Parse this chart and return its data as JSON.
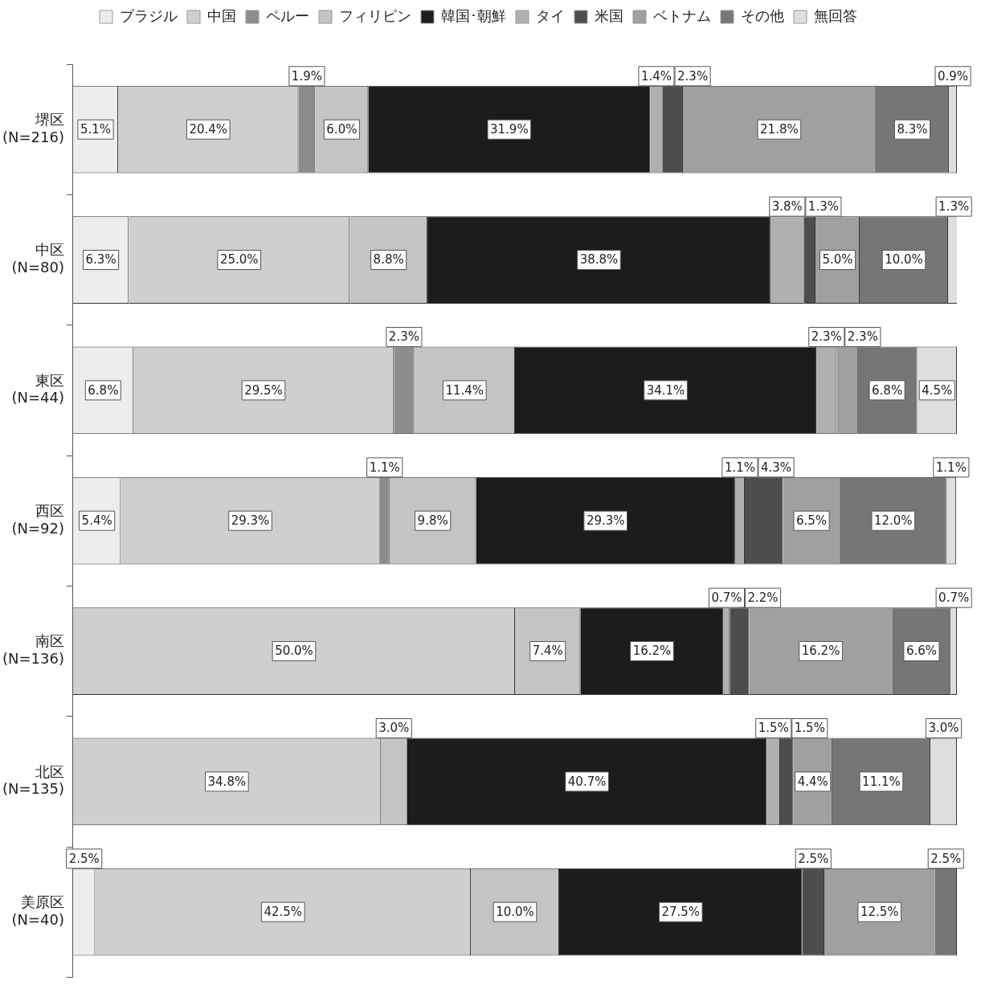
{
  "chart_data": {
    "type": "bar",
    "orientation": "horizontal",
    "stacked": true,
    "legend": "top",
    "grid": false,
    "tick_labels": "y",
    "xlim": [
      0,
      100
    ],
    "categories": [
      "堺区\n(N=216)",
      "中区\n(N=80)",
      "東区\n(N=44)",
      "西区\n(N=92)",
      "南区\n(N=136)",
      "北区\n(N=135)",
      "美原区\n(N=40)"
    ],
    "series": [
      {
        "name": "ブラジル",
        "color": "#ededed",
        "values": [
          5.1,
          6.3,
          6.8,
          5.4,
          null,
          null,
          2.5
        ],
        "value_labels": [
          "5.1%",
          "6.3%",
          "6.8%",
          "5.4%",
          null,
          null,
          "2.5%"
        ]
      },
      {
        "name": "中国",
        "color": "#cfcfcf",
        "values": [
          20.4,
          25.0,
          29.5,
          29.3,
          50.0,
          34.8,
          42.5
        ],
        "value_labels": [
          "20.4%",
          "25.0%",
          "29.5%",
          "29.3%",
          "50.0%",
          "34.8%",
          "42.5%"
        ]
      },
      {
        "name": "ペルー",
        "color": "#8c8c8c",
        "values": [
          1.9,
          null,
          2.3,
          1.1,
          null,
          null,
          null
        ],
        "value_labels": [
          "1.9%",
          null,
          "2.3%",
          "1.1%",
          null,
          null,
          null
        ]
      },
      {
        "name": "フィリピン",
        "color": "#c4c4c4",
        "values": [
          6.0,
          8.8,
          11.4,
          9.8,
          7.4,
          3.0,
          10.0
        ],
        "value_labels": [
          "6.0%",
          "8.8%",
          "11.4%",
          "9.8%",
          "7.4%",
          "3.0%",
          "10.0%"
        ]
      },
      {
        "name": "韓国･朝鮮",
        "color": "#1c1c1c",
        "values": [
          31.9,
          38.8,
          34.1,
          29.3,
          16.2,
          40.7,
          27.5
        ],
        "value_labels": [
          "31.9%",
          "38.8%",
          "34.1%",
          "29.3%",
          "16.2%",
          "40.7%",
          "27.5%"
        ]
      },
      {
        "name": "タイ",
        "color": "#b0b0b0",
        "values": [
          1.4,
          3.8,
          2.3,
          1.1,
          0.7,
          1.5,
          null
        ],
        "value_labels": [
          "1.4%",
          "3.8%",
          "2.3%",
          "1.1%",
          "0.7%",
          "1.5%",
          null
        ]
      },
      {
        "name": "米国",
        "color": "#4d4d4d",
        "values": [
          2.3,
          1.3,
          null,
          4.3,
          2.2,
          1.5,
          2.5
        ],
        "value_labels": [
          "2.3%",
          "1.3%",
          null,
          "4.3%",
          "2.2%",
          "1.5%",
          "2.5%"
        ]
      },
      {
        "name": "ベトナム",
        "color": "#a0a0a0",
        "values": [
          21.8,
          5.0,
          2.3,
          6.5,
          16.2,
          4.4,
          12.5
        ],
        "value_labels": [
          "21.8%",
          "5.0%",
          "2.3%",
          "6.5%",
          "16.2%",
          "4.4%",
          "12.5%"
        ]
      },
      {
        "name": "その他",
        "color": "#767676",
        "values": [
          8.3,
          10.0,
          6.8,
          12.0,
          6.6,
          11.1,
          2.5
        ],
        "value_labels": [
          "8.3%",
          "10.0%",
          "6.8%",
          "12.0%",
          "6.6%",
          "11.1%",
          "2.5%"
        ]
      },
      {
        "name": "無回答",
        "color": "#dedede",
        "values": [
          0.9,
          1.3,
          4.5,
          1.1,
          0.7,
          3.0,
          null
        ],
        "value_labels": [
          "0.9%",
          "1.3%",
          "4.5%",
          "1.1%",
          "0.7%",
          "3.0%",
          null
        ]
      }
    ]
  }
}
